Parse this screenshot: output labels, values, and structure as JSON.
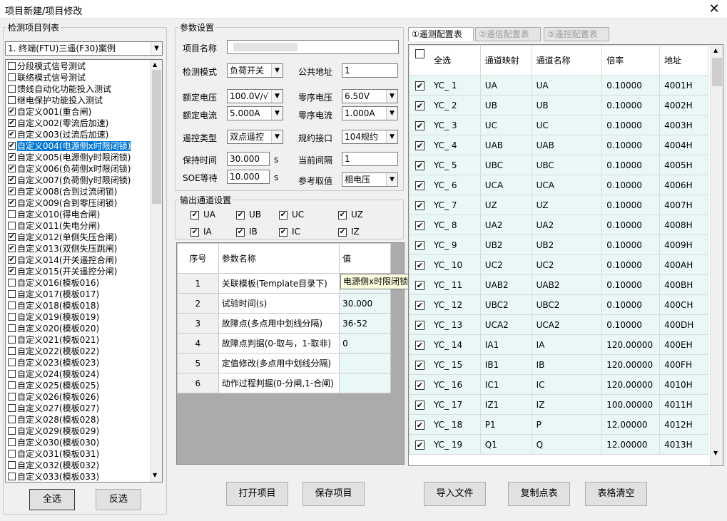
{
  "window": {
    "title": "项目新建/项目修改",
    "close": "✕"
  },
  "left": {
    "group_label": "检测项目列表",
    "combo_value": "1. 终端(FTU)三遥(F30)案例",
    "items": [
      {
        "label": "分段模式信号测试",
        "checked": false
      },
      {
        "label": "联络模式信号测试",
        "checked": false
      },
      {
        "label": "馈线自动化功能投入测试",
        "checked": false
      },
      {
        "label": "继电保护功能投入测试",
        "checked": false
      },
      {
        "label": "自定义001(重合闸)",
        "checked": true
      },
      {
        "label": "自定义002(零流后加速)",
        "checked": true
      },
      {
        "label": "自定义003(过流后加速)",
        "checked": true
      },
      {
        "label": "自定义004(电源侧x时限闭锁)",
        "checked": true,
        "selected": true
      },
      {
        "label": "自定义005(电源侧y时限闭锁)",
        "checked": true
      },
      {
        "label": "自定义006(负荷侧x时限闭锁)",
        "checked": true
      },
      {
        "label": "自定义007(负荷侧y时限闭锁)",
        "checked": true
      },
      {
        "label": "自定义008(合到过流闭锁)",
        "checked": true
      },
      {
        "label": "自定义009(合到零压闭锁)",
        "checked": true
      },
      {
        "label": "自定义010(得电合闸)",
        "checked": false
      },
      {
        "label": "自定义011(失电分闸)",
        "checked": false
      },
      {
        "label": "自定义012(单侧失压合闸)",
        "checked": true
      },
      {
        "label": "自定义013(双侧失压跳闸)",
        "checked": true
      },
      {
        "label": "自定义014(开关遥控合闸)",
        "checked": true
      },
      {
        "label": "自定义015(开关遥控分闸)",
        "checked": true
      },
      {
        "label": "自定义016(模板016)",
        "checked": false
      },
      {
        "label": "自定义017(模板017)",
        "checked": false
      },
      {
        "label": "自定义018(模板018)",
        "checked": false
      },
      {
        "label": "自定义019(模板019)",
        "checked": false
      },
      {
        "label": "自定义020(模板020)",
        "checked": false
      },
      {
        "label": "自定义021(模板021)",
        "checked": false
      },
      {
        "label": "自定义022(模板022)",
        "checked": false
      },
      {
        "label": "自定义023(模板023)",
        "checked": false
      },
      {
        "label": "自定义024(模板024)",
        "checked": false
      },
      {
        "label": "自定义025(模板025)",
        "checked": false
      },
      {
        "label": "自定义026(模板026)",
        "checked": false
      },
      {
        "label": "自定义027(模板027)",
        "checked": false
      },
      {
        "label": "自定义028(模板028)",
        "checked": false
      },
      {
        "label": "自定义029(模板029)",
        "checked": false
      },
      {
        "label": "自定义030(模板030)",
        "checked": false
      },
      {
        "label": "自定义031(模板031)",
        "checked": false
      },
      {
        "label": "自定义032(模板032)",
        "checked": false
      },
      {
        "label": "自定义033(模板033)",
        "checked": false
      }
    ],
    "select_all": "全选",
    "invert": "反选"
  },
  "params": {
    "group_label": "参数设置",
    "project_name_label": "项目名称",
    "project_name_value": "",
    "mode_label": "检测模式",
    "mode_value": "负荷开关",
    "addr_label": "公共地址",
    "addr_value": "1",
    "rated_v_label": "额定电压",
    "rated_v_value": "100.0V/√",
    "zero_v_label": "零序电压",
    "zero_v_value": "6.50V",
    "rated_i_label": "额定电流",
    "rated_i_value": "5.000A",
    "zero_i_label": "零序电流",
    "zero_i_value": "1.000A",
    "remote_label": "遥控类型",
    "remote_value": "双点遥控",
    "protocol_label": "规约接口",
    "protocol_value": "104规约",
    "hold_label": "保持时间",
    "hold_value": "30.000",
    "hold_unit": "s",
    "interval_label": "当前间隔",
    "interval_value": "1",
    "soe_label": "SOE等待",
    "soe_value": "10.000",
    "soe_unit": "s",
    "ref_label": "参考取值",
    "ref_value": "相电压"
  },
  "output": {
    "group_label": "输出通道设置",
    "channels": [
      {
        "label": "UA",
        "checked": true
      },
      {
        "label": "UB",
        "checked": true
      },
      {
        "label": "UC",
        "checked": true
      },
      {
        "label": "UZ",
        "checked": true
      },
      {
        "label": "IA",
        "checked": true
      },
      {
        "label": "IB",
        "checked": true
      },
      {
        "label": "IC",
        "checked": true
      },
      {
        "label": "IZ",
        "checked": true
      }
    ]
  },
  "param_table": {
    "headers": [
      "序号",
      "参数名称",
      "值"
    ],
    "rows": [
      {
        "no": "1",
        "name": "关联模板(Template目录下)",
        "value": ""
      },
      {
        "no": "2",
        "name": "试验时间(s)",
        "value": "30.000"
      },
      {
        "no": "3",
        "name": "故障点(多点用中划线分隔)",
        "value": "36-52"
      },
      {
        "no": "4",
        "name": "故障点判据(0-取与，1-取非)",
        "value": "0"
      },
      {
        "no": "5",
        "name": "定值修改(多点用中划线分隔)",
        "value": ""
      },
      {
        "no": "6",
        "name": "动作过程判据(0-分闸,1-合闸)",
        "value": ""
      }
    ],
    "tooltip": "电源侧x时限闭锁"
  },
  "tabs": [
    "①遥测配置表",
    "②遥信配置表",
    "③遥控配置表"
  ],
  "config_table": {
    "headers": [
      "全选",
      "通道映射",
      "通道名称",
      "倍率",
      "地址"
    ],
    "rows": [
      {
        "name": "YC_ 1",
        "map": "UA",
        "ch": "UA",
        "ratio": "0.10000",
        "addr": "4001H"
      },
      {
        "name": "YC_ 2",
        "map": "UB",
        "ch": "UB",
        "ratio": "0.10000",
        "addr": "4002H"
      },
      {
        "name": "YC_ 3",
        "map": "UC",
        "ch": "UC",
        "ratio": "0.10000",
        "addr": "4003H"
      },
      {
        "name": "YC_ 4",
        "map": "UAB",
        "ch": "UAB",
        "ratio": "0.10000",
        "addr": "4004H"
      },
      {
        "name": "YC_ 5",
        "map": "UBC",
        "ch": "UBC",
        "ratio": "0.10000",
        "addr": "4005H"
      },
      {
        "name": "YC_ 6",
        "map": "UCA",
        "ch": "UCA",
        "ratio": "0.10000",
        "addr": "4006H"
      },
      {
        "name": "YC_ 7",
        "map": "UZ",
        "ch": "UZ",
        "ratio": "0.10000",
        "addr": "4007H"
      },
      {
        "name": "YC_ 8",
        "map": "UA2",
        "ch": "UA2",
        "ratio": "0.10000",
        "addr": "4008H"
      },
      {
        "name": "YC_ 9",
        "map": "UB2",
        "ch": "UB2",
        "ratio": "0.10000",
        "addr": "4009H"
      },
      {
        "name": "YC_ 10",
        "map": "UC2",
        "ch": "UC2",
        "ratio": "0.10000",
        "addr": "400AH"
      },
      {
        "name": "YC_ 11",
        "map": "UAB2",
        "ch": "UAB2",
        "ratio": "0.10000",
        "addr": "400BH"
      },
      {
        "name": "YC_ 12",
        "map": "UBC2",
        "ch": "UBC2",
        "ratio": "0.10000",
        "addr": "400CH"
      },
      {
        "name": "YC_ 13",
        "map": "UCA2",
        "ch": "UCA2",
        "ratio": "0.10000",
        "addr": "400DH"
      },
      {
        "name": "YC_ 14",
        "map": "IA1",
        "ch": "IA",
        "ratio": "120.00000",
        "addr": "400EH"
      },
      {
        "name": "YC_ 15",
        "map": "IB1",
        "ch": "IB",
        "ratio": "120.00000",
        "addr": "400FH"
      },
      {
        "name": "YC_ 16",
        "map": "IC1",
        "ch": "IC",
        "ratio": "120.00000",
        "addr": "4010H"
      },
      {
        "name": "YC_ 17",
        "map": "IZ1",
        "ch": "IZ",
        "ratio": "100.00000",
        "addr": "4011H"
      },
      {
        "name": "YC_ 18",
        "map": "P1",
        "ch": "P",
        "ratio": "12.00000",
        "addr": "4012H"
      },
      {
        "name": "YC_ 19",
        "map": "Q1",
        "ch": "Q",
        "ratio": "12.00000",
        "addr": "4013H"
      }
    ]
  },
  "bottom": {
    "open": "打开项目",
    "save": "保存项目",
    "import": "导入文件",
    "copy": "复制点表",
    "clear": "表格清空"
  }
}
